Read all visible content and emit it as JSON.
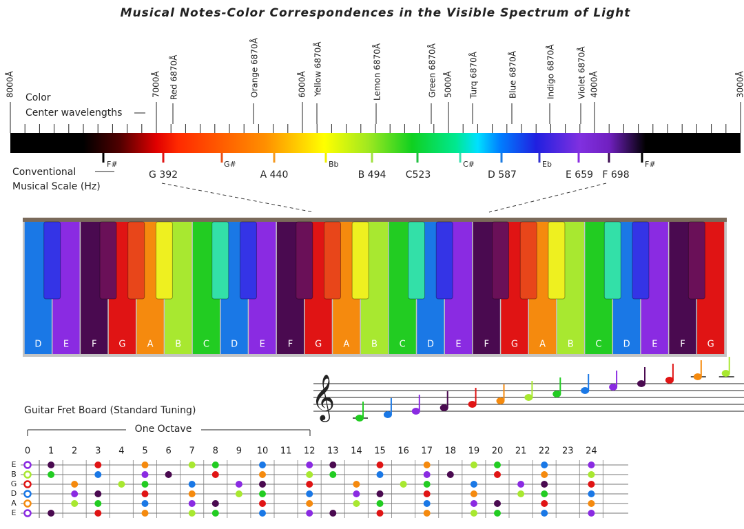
{
  "title": "Musical Notes-Color Correspondences in the Visible Spectrum of Light",
  "note_colors": {
    "C": "#22cc22",
    "C#": "#33e0a8",
    "D": "#1a78e6",
    "D#": "#3434e6",
    "E": "#8a2be2",
    "F": "#4a0a50",
    "F#": "#6a1058",
    "G": "#e01414",
    "G#": "#e8461a",
    "A": "#f58a0e",
    "A#": "#eef020",
    "B": "#a8e830"
  },
  "spectrum": {
    "wavelength_ticks": [
      "8000Å",
      "7000Å",
      "6000Å",
      "5000Å",
      "4000Å",
      "3000Å"
    ],
    "color_centers": [
      "Red 6870Å",
      "Orange 6870Å",
      "Yellow 6870Å",
      "Lemon 6870Å",
      "Green 6870Å",
      "Turq 6870Å",
      "Blue 6870Å",
      "Indigo 6870Å",
      "Violet 6870Å"
    ],
    "color_label": "Color",
    "center_label": "Center wavelengths",
    "scale_label": [
      "Conventional",
      "Musical Scale (Hz)"
    ],
    "scale_notes": [
      {
        "label": "F#",
        "color": "#000000"
      },
      {
        "label": "G 392",
        "color": "#e01414"
      },
      {
        "label": "G#",
        "color": "#e8501a"
      },
      {
        "label": "A 440",
        "color": "#f59a20"
      },
      {
        "label": "Bb",
        "color": "#f0f000"
      },
      {
        "label": "B 494",
        "color": "#a0e040"
      },
      {
        "label": "C523",
        "color": "#20c040"
      },
      {
        "label": "C#",
        "color": "#40e0b0"
      },
      {
        "label": "D 587",
        "color": "#1a7ae0"
      },
      {
        "label": "Eb",
        "color": "#3030d0"
      },
      {
        "label": "E 659",
        "color": "#8a2be2"
      },
      {
        "label": "F 698",
        "color": "#3a0a50"
      },
      {
        "label": "F#",
        "color": "#000000"
      }
    ]
  },
  "keyboard": {
    "keys": [
      "D",
      "E",
      "F",
      "G",
      "A",
      "B",
      "C",
      "D",
      "E",
      "F",
      "G",
      "A",
      "B",
      "C",
      "D",
      "E",
      "F",
      "G",
      "A",
      "B",
      "C",
      "D",
      "E",
      "F",
      "G"
    ]
  },
  "staff": {
    "clef": "𝄞",
    "notes": [
      "C",
      "D",
      "E",
      "F",
      "G",
      "A",
      "B",
      "C",
      "D",
      "E",
      "F",
      "G",
      "A",
      "B"
    ]
  },
  "guitar": {
    "title": "Guitar Fret Board (Standard Tuning)",
    "octave_label": "One Octave",
    "frets": [
      "0",
      "1",
      "2",
      "3",
      "4",
      "5",
      "6",
      "7",
      "8",
      "9",
      "10",
      "11",
      "12",
      "13",
      "14",
      "15",
      "16",
      "17",
      "18",
      "19",
      "20",
      "21",
      "22",
      "23",
      "24"
    ],
    "strings": [
      {
        "name": "E",
        "notes": [
          "E",
          "F",
          null,
          "G",
          null,
          "A",
          null,
          "B",
          "C",
          null,
          "D",
          null,
          "E",
          "F",
          null,
          "G",
          null,
          "A",
          null,
          "B",
          "C",
          null,
          "D",
          null,
          "E"
        ]
      },
      {
        "name": "B",
        "notes": [
          "B",
          "C",
          null,
          "D",
          null,
          "E",
          "F",
          null,
          "G",
          null,
          "A",
          null,
          "B",
          "C",
          null,
          "D",
          null,
          "E",
          "F",
          null,
          "G",
          null,
          "A",
          null,
          "B"
        ]
      },
      {
        "name": "G",
        "notes": [
          "G",
          null,
          "A",
          null,
          "B",
          "C",
          null,
          "D",
          null,
          "E",
          "F",
          null,
          "G",
          null,
          "A",
          null,
          "B",
          "C",
          null,
          "D",
          null,
          "E",
          "F",
          null,
          "G"
        ]
      },
      {
        "name": "D",
        "notes": [
          "D",
          null,
          "E",
          "F",
          null,
          "G",
          null,
          "A",
          null,
          "B",
          "C",
          null,
          "D",
          null,
          "E",
          "F",
          null,
          "G",
          null,
          "A",
          null,
          "B",
          "C",
          null,
          "D"
        ]
      },
      {
        "name": "A",
        "notes": [
          "A",
          null,
          "B",
          "C",
          null,
          "D",
          null,
          "E",
          "F",
          null,
          "G",
          null,
          "A",
          null,
          "B",
          "C",
          null,
          "D",
          null,
          "E",
          "F",
          null,
          "G",
          null,
          "A"
        ]
      },
      {
        "name": "E",
        "notes": [
          "E",
          "F",
          null,
          "G",
          null,
          "A",
          null,
          "B",
          "C",
          null,
          "D",
          null,
          "E",
          "F",
          null,
          "G",
          null,
          "A",
          null,
          "B",
          "C",
          null,
          "D",
          null,
          "E"
        ]
      }
    ]
  }
}
